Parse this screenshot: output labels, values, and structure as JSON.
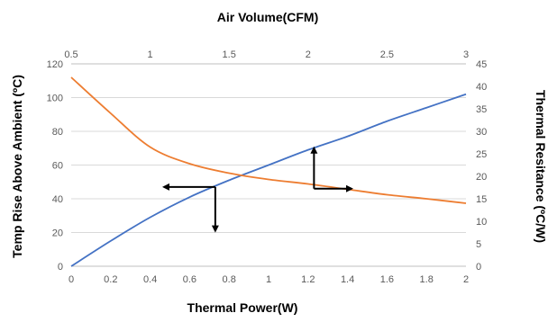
{
  "chart_data": {
    "type": "line",
    "title": "",
    "xlabel_bottom": "Thermal Power(W)",
    "xlabel_top": "Air Volume(CFM)",
    "ylabel_left": "Temp Rise Above Ambient (ºC)",
    "ylabel_right": "Thermal Resitance (ºC/W)",
    "x_bottom": {
      "min": 0,
      "max": 2,
      "ticks": [
        "0",
        "0.2",
        "0.4",
        "0.6",
        "0.8",
        "1",
        "1.2",
        "1.4",
        "1.6",
        "1.8",
        "2"
      ]
    },
    "x_top": {
      "min": 0.5,
      "max": 3,
      "ticks": [
        "0.5",
        "1",
        "1.5",
        "2",
        "2.5",
        "3"
      ]
    },
    "y_left": {
      "min": 0,
      "max": 120,
      "ticks": [
        "0",
        "20",
        "40",
        "60",
        "80",
        "100",
        "120"
      ]
    },
    "y_right": {
      "min": 0,
      "max": 45,
      "ticks": [
        "0",
        "5",
        "10",
        "15",
        "20",
        "25",
        "30",
        "35",
        "40",
        "45"
      ]
    },
    "grid": true,
    "series": [
      {
        "color": "#4472c4",
        "x_axis": "bottom",
        "y_axis": "left",
        "points": [
          [
            0,
            0
          ],
          [
            0.2,
            15
          ],
          [
            0.4,
            29
          ],
          [
            0.6,
            41
          ],
          [
            0.8,
            51
          ],
          [
            1.0,
            60
          ],
          [
            1.2,
            69
          ],
          [
            1.4,
            77
          ],
          [
            1.6,
            86
          ],
          [
            1.8,
            94
          ],
          [
            2.0,
            102
          ]
        ]
      },
      {
        "color": "#ed7d31",
        "x_axis": "top",
        "y_axis": "right",
        "points": [
          [
            0.5,
            42
          ],
          [
            0.75,
            34
          ],
          [
            1.0,
            26.5
          ],
          [
            1.25,
            22.8
          ],
          [
            1.5,
            20.7
          ],
          [
            1.75,
            19.3
          ],
          [
            2.0,
            18.3
          ],
          [
            2.25,
            17.1
          ],
          [
            2.5,
            15.9
          ],
          [
            2.75,
            15
          ],
          [
            3.0,
            14
          ]
        ]
      }
    ],
    "annotations": [
      {
        "type": "arrow",
        "from_bottom_x": 0.73,
        "from_left_y": 47,
        "to_bottom_x": 0.47,
        "to_left_y": 47
      },
      {
        "type": "arrow",
        "from_bottom_x": 0.73,
        "from_left_y": 47,
        "to_bottom_x": 0.73,
        "to_left_y": 21
      },
      {
        "type": "arrow",
        "from_bottom_x": 1.23,
        "from_left_y": 46,
        "to_bottom_x": 1.23,
        "to_left_y": 70
      },
      {
        "type": "arrow",
        "from_bottom_x": 1.23,
        "from_left_y": 46,
        "to_bottom_x": 1.42,
        "to_left_y": 46
      }
    ]
  }
}
